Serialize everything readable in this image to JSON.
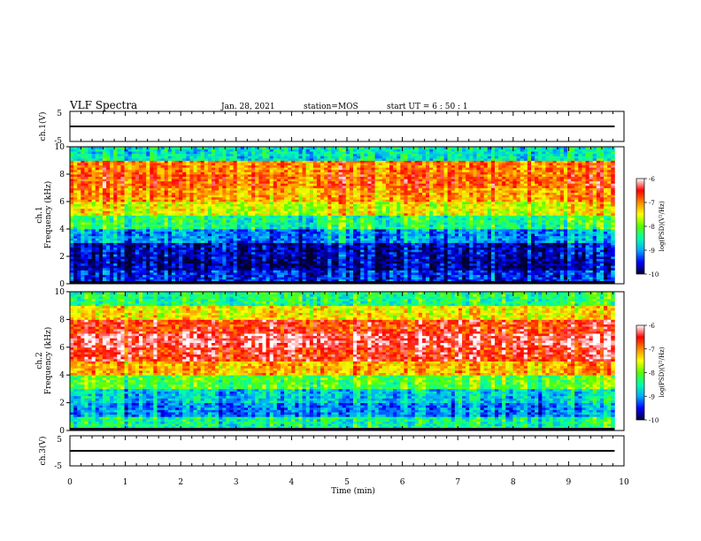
{
  "header": {
    "title": "VLF Spectra",
    "date": "Jan. 28, 2021",
    "station": "station=MOS",
    "start": "start  UT =   6 : 50 : 1"
  },
  "chart_data": [
    {
      "type": "line",
      "panel": "ch1-waveform",
      "ylabel": "ch.1(V)",
      "ylim": [
        -5,
        5
      ],
      "ytick_labels": [
        "5",
        "-5"
      ],
      "xlim": [
        0,
        10
      ],
      "series": [
        {
          "values_level": 0
        }
      ]
    },
    {
      "type": "heatmap",
      "panel": "ch1-spectrogram",
      "ylabel_line1": "ch.1",
      "ylabel_line2": "Frequency (kHz)",
      "ylim": [
        0,
        10
      ],
      "ytick_labels": [
        "0",
        "2",
        "4",
        "6",
        "8",
        "10"
      ],
      "xlim": [
        0,
        9.83
      ],
      "x": [
        0.0,
        0.5,
        1.0,
        1.5,
        2.0,
        2.5,
        3.0,
        3.5,
        4.0,
        4.5,
        5.0,
        5.5,
        6.0,
        6.5,
        7.0,
        7.5,
        8.0,
        8.5,
        9.0,
        9.5
      ],
      "y": [
        0.5,
        1.5,
        2.5,
        3.5,
        4.5,
        5.5,
        6.5,
        7.5,
        8.5,
        9.5
      ],
      "values": [
        [
          -9.4,
          -9.4,
          -9.5,
          -9.4,
          -9.4,
          -9.5,
          -9.4,
          -9.4,
          -9.5,
          -9.3,
          -9.4,
          -9.4,
          -9.4,
          -9.5,
          -9.4,
          -9.4,
          -9.5,
          -9.4,
          -9.4,
          -9.4
        ],
        [
          -9.7,
          -9.6,
          -9.8,
          -9.7,
          -9.7,
          -9.8,
          -9.7,
          -9.8,
          -9.8,
          -9.6,
          -9.7,
          -9.8,
          -9.6,
          -9.8,
          -9.7,
          -9.7,
          -9.8,
          -9.7,
          -9.7,
          -9.6
        ],
        [
          -9.6,
          -9.5,
          -9.7,
          -9.6,
          -9.6,
          -9.7,
          -9.7,
          -9.7,
          -9.8,
          -9.5,
          -9.6,
          -9.7,
          -9.6,
          -9.7,
          -9.6,
          -9.6,
          -9.7,
          -9.6,
          -9.6,
          -9.5
        ],
        [
          -8.9,
          -8.8,
          -9.2,
          -9.0,
          -8.9,
          -9.3,
          -9.1,
          -9.2,
          -9.3,
          -8.8,
          -9.0,
          -9.2,
          -8.9,
          -9.2,
          -9.0,
          -9.0,
          -9.2,
          -9.0,
          -8.9,
          -8.8
        ],
        [
          -8.2,
          -8.1,
          -8.5,
          -8.3,
          -8.2,
          -8.6,
          -8.4,
          -8.5,
          -8.6,
          -8.1,
          -8.3,
          -8.5,
          -8.2,
          -8.5,
          -8.3,
          -8.3,
          -8.5,
          -8.3,
          -8.2,
          -8.1
        ],
        [
          -7.4,
          -7.3,
          -7.7,
          -7.5,
          -7.4,
          -7.8,
          -7.6,
          -7.7,
          -7.8,
          -7.3,
          -7.5,
          -7.7,
          -7.4,
          -7.7,
          -7.5,
          -7.5,
          -7.7,
          -7.5,
          -7.4,
          -7.3
        ],
        [
          -7.0,
          -6.9,
          -7.2,
          -7.1,
          -7.0,
          -7.3,
          -7.1,
          -7.2,
          -7.3,
          -6.9,
          -7.1,
          -7.2,
          -7.0,
          -7.2,
          -7.1,
          -7.1,
          -7.2,
          -7.1,
          -7.0,
          -6.9
        ],
        [
          -6.8,
          -6.7,
          -6.9,
          -6.8,
          -6.8,
          -7.0,
          -6.9,
          -6.9,
          -7.0,
          -6.7,
          -6.8,
          -6.9,
          -6.8,
          -6.9,
          -6.8,
          -6.8,
          -6.9,
          -6.8,
          -6.8,
          -6.7
        ],
        [
          -6.9,
          -6.8,
          -7.0,
          -6.9,
          -6.9,
          -7.1,
          -7.0,
          -7.0,
          -7.1,
          -6.8,
          -6.9,
          -7.0,
          -6.9,
          -7.0,
          -6.9,
          -6.9,
          -7.0,
          -6.9,
          -6.9,
          -6.8
        ],
        [
          -8.6,
          -8.5,
          -8.7,
          -8.6,
          -8.6,
          -8.7,
          -8.6,
          -8.6,
          -8.7,
          -8.5,
          -8.6,
          -8.6,
          -8.6,
          -8.7,
          -8.6,
          -8.6,
          -8.7,
          -8.6,
          -8.6,
          -8.5
        ]
      ],
      "colorbar": {
        "label": "log(PSD)(V²/Hz)",
        "range": [
          -10,
          -6
        ],
        "tick_labels": [
          "-6",
          "-7",
          "-8",
          "-9",
          "-10"
        ]
      }
    },
    {
      "type": "heatmap",
      "panel": "ch2-spectrogram",
      "ylabel_line1": "ch.2",
      "ylabel_line2": "Frequency (kHz)",
      "ylim": [
        0,
        10
      ],
      "ytick_labels": [
        "0",
        "2",
        "4",
        "6",
        "8",
        "10"
      ],
      "xlim": [
        0,
        9.83
      ],
      "x": [
        0.0,
        0.5,
        1.0,
        1.5,
        2.0,
        2.5,
        3.0,
        3.5,
        4.0,
        4.5,
        5.0,
        5.5,
        6.0,
        6.5,
        7.0,
        7.5,
        8.0,
        8.5,
        9.0,
        9.5
      ],
      "y": [
        0.5,
        1.5,
        2.5,
        3.5,
        4.5,
        5.5,
        6.5,
        7.5,
        8.5,
        9.5
      ],
      "values": [
        [
          -8.4,
          -8.3,
          -8.5,
          -8.4,
          -8.4,
          -8.6,
          -8.4,
          -8.5,
          -8.5,
          -8.3,
          -8.4,
          -8.5,
          -8.4,
          -8.5,
          -8.4,
          -8.4,
          -8.5,
          -8.4,
          -8.4,
          -8.3
        ],
        [
          -9.0,
          -8.9,
          -9.2,
          -9.0,
          -9.0,
          -9.2,
          -9.1,
          -9.1,
          -9.2,
          -8.9,
          -9.0,
          -9.2,
          -9.0,
          -9.2,
          -9.0,
          -9.0,
          -9.2,
          -9.0,
          -9.0,
          -8.9
        ],
        [
          -8.7,
          -8.6,
          -8.9,
          -8.7,
          -8.7,
          -8.9,
          -8.8,
          -8.8,
          -8.9,
          -8.6,
          -8.7,
          -8.9,
          -8.7,
          -8.9,
          -8.7,
          -8.7,
          -8.9,
          -8.7,
          -8.7,
          -8.6
        ],
        [
          -8.0,
          -7.9,
          -8.2,
          -8.0,
          -8.0,
          -8.2,
          -8.1,
          -8.1,
          -8.2,
          -7.9,
          -8.0,
          -8.2,
          -8.0,
          -8.2,
          -8.0,
          -8.0,
          -8.2,
          -8.0,
          -8.0,
          -7.9
        ],
        [
          -7.1,
          -7.0,
          -7.3,
          -7.1,
          -7.1,
          -7.3,
          -7.2,
          -7.2,
          -7.3,
          -7.0,
          -7.1,
          -7.3,
          -7.1,
          -7.3,
          -7.1,
          -7.1,
          -7.3,
          -7.1,
          -7.1,
          -7.0
        ],
        [
          -6.5,
          -6.4,
          -6.6,
          -6.5,
          -6.5,
          -6.6,
          -6.5,
          -6.5,
          -6.6,
          -6.4,
          -6.5,
          -6.6,
          -6.5,
          -6.6,
          -6.5,
          -6.5,
          -6.6,
          -6.5,
          -6.5,
          -6.4
        ],
        [
          -6.3,
          -6.2,
          -6.4,
          -6.3,
          -6.3,
          -6.4,
          -6.3,
          -6.3,
          -6.4,
          -6.2,
          -6.3,
          -6.4,
          -6.3,
          -6.4,
          -6.3,
          -6.3,
          -6.4,
          -6.3,
          -6.3,
          -6.2
        ],
        [
          -6.6,
          -6.5,
          -6.7,
          -6.6,
          -6.6,
          -6.7,
          -6.6,
          -6.6,
          -6.7,
          -6.5,
          -6.6,
          -6.7,
          -6.6,
          -6.7,
          -6.6,
          -6.6,
          -6.7,
          -6.6,
          -6.6,
          -6.5
        ],
        [
          -7.4,
          -7.3,
          -7.5,
          -7.4,
          -7.4,
          -7.5,
          -7.4,
          -7.4,
          -7.5,
          -7.3,
          -7.4,
          -7.5,
          -7.4,
          -7.5,
          -7.4,
          -7.4,
          -7.5,
          -7.4,
          -7.4,
          -7.3
        ],
        [
          -8.3,
          -8.2,
          -8.4,
          -8.3,
          -8.3,
          -8.4,
          -8.3,
          -8.3,
          -8.4,
          -8.2,
          -8.3,
          -8.4,
          -8.3,
          -8.4,
          -8.3,
          -8.3,
          -8.4,
          -8.3,
          -8.3,
          -8.2
        ]
      ],
      "colorbar": {
        "label": "log(PSD)(V²/Hz)",
        "range": [
          -10,
          -6
        ],
        "tick_labels": [
          "-6",
          "-7",
          "-8",
          "-9",
          "-10"
        ]
      }
    },
    {
      "type": "line",
      "panel": "ch3-waveform",
      "ylabel": "ch.3(V)",
      "ylim": [
        -5,
        5
      ],
      "ytick_labels": [
        "5",
        "-5"
      ],
      "xlim": [
        0,
        10
      ],
      "series": [
        {
          "values_level": 0
        }
      ]
    }
  ],
  "xaxis": {
    "label": "Time (min)",
    "range": [
      0,
      10
    ],
    "tick_labels": [
      "0",
      "1",
      "2",
      "3",
      "4",
      "5",
      "6",
      "7",
      "8",
      "9",
      "10"
    ]
  },
  "colorscale": [
    "#000033",
    "#0000ff",
    "#00aaff",
    "#00ffaa",
    "#55ff00",
    "#ffff00",
    "#ff8800",
    "#ff0000",
    "#ffffff"
  ]
}
